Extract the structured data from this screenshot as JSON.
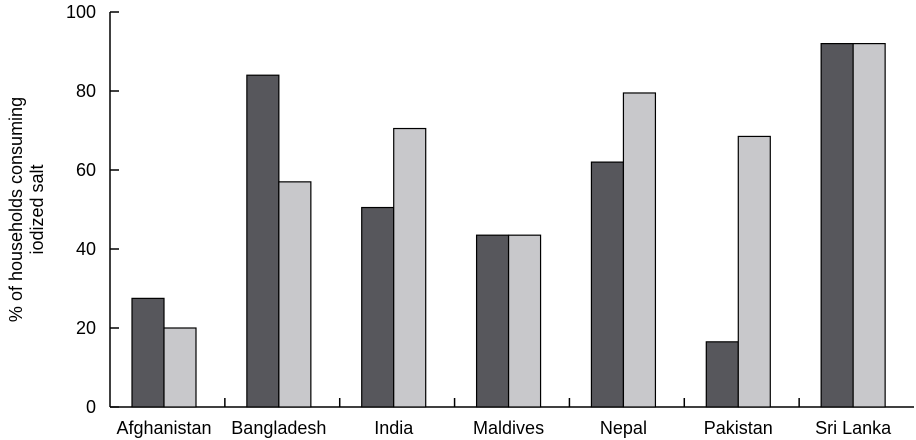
{
  "chart_data": {
    "type": "bar",
    "title": "",
    "xlabel": "",
    "ylabel_lines": [
      "% of households consuming",
      "iodized salt"
    ],
    "ylim": [
      0,
      100
    ],
    "yticks": [
      0,
      20,
      40,
      60,
      80,
      100
    ],
    "grid": false,
    "categories": [
      "Afghanistan",
      "Bangladesh",
      "India",
      "Maldives",
      "Nepal",
      "Pakistan",
      "Sri Lanka"
    ],
    "series": [
      {
        "color": "#57575c",
        "values": [
          27.5,
          84,
          50.5,
          43.5,
          62,
          16.5,
          92
        ]
      },
      {
        "color": "#c8c8cb",
        "values": [
          20,
          57,
          70.5,
          43.5,
          79.5,
          68.5,
          92
        ]
      }
    ]
  }
}
